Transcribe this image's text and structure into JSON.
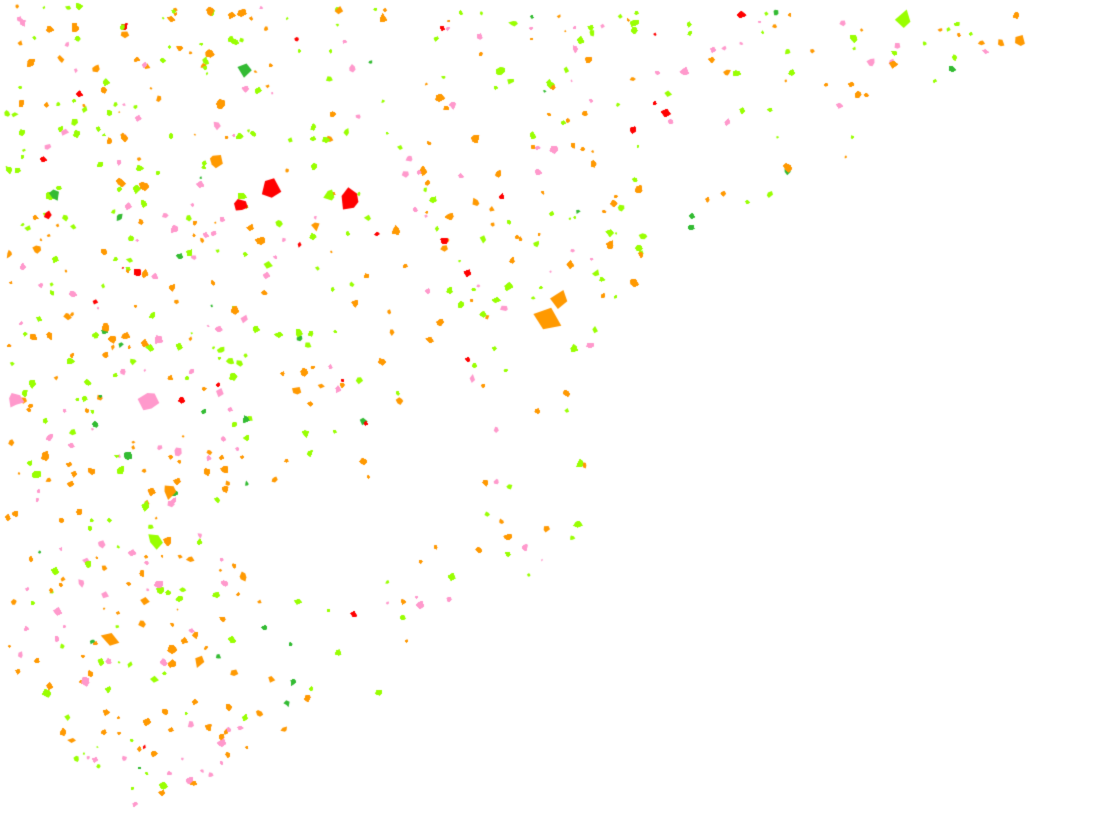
{
  "map": {
    "background": "#ffffff",
    "land_use_colors": {
      "orange": "#ff9900",
      "light_green": "#99ff00",
      "pink": "#ff99cc",
      "red": "#ff0000",
      "green": "#33bb33"
    }
  }
}
